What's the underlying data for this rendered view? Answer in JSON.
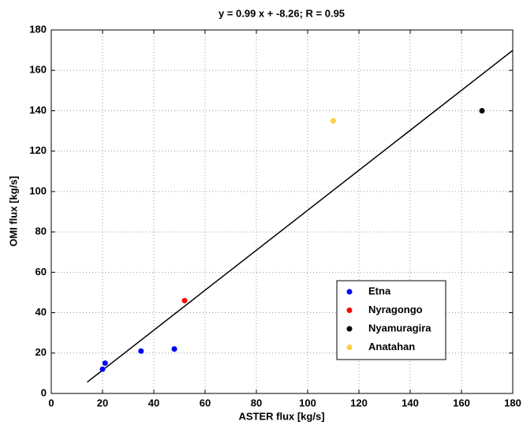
{
  "chart_data": {
    "type": "scatter",
    "title": "y = 0.99 x + -8.26; R = 0.95",
    "xlabel": "ASTER flux [kg/s]",
    "ylabel": "OMI flux [kg/s]",
    "xlim": [
      0,
      180
    ],
    "ylim": [
      0,
      180
    ],
    "xticks": [
      0,
      20,
      40,
      60,
      80,
      100,
      120,
      140,
      160,
      180
    ],
    "yticks": [
      0,
      20,
      40,
      60,
      80,
      100,
      120,
      140,
      160,
      180
    ],
    "grid": true,
    "legend": "lower right",
    "series": [
      {
        "name": "Etna",
        "color": "#0000ff",
        "x": [
          20,
          21,
          35,
          48
        ],
        "values": [
          12,
          15,
          21,
          22
        ]
      },
      {
        "name": "Nyragongo",
        "color": "#ff0000",
        "x": [
          52
        ],
        "values": [
          46
        ]
      },
      {
        "name": "Nyamuragira",
        "color": "#000000",
        "x": [
          168
        ],
        "values": [
          140
        ]
      },
      {
        "name": "Anatahan",
        "color": "#ffcc44",
        "x": [
          110
        ],
        "values": [
          135
        ]
      }
    ],
    "fit_line": {
      "color": "#000000",
      "x": [
        14,
        180
      ],
      "values": [
        5.6,
        169.9
      ]
    }
  }
}
